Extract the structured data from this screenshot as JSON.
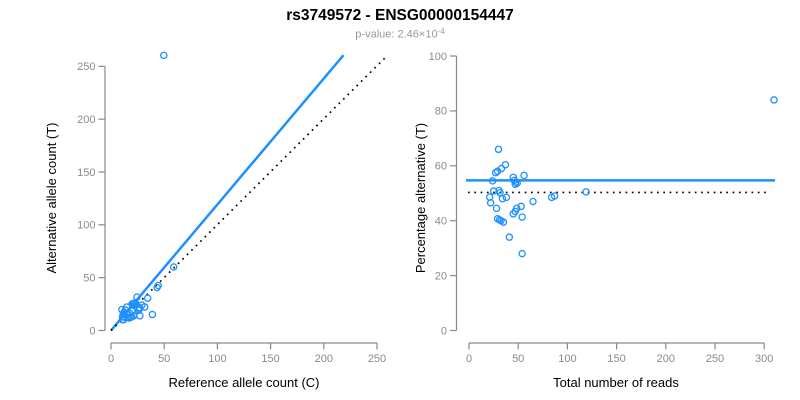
{
  "header": {
    "title": "rs3749572 - ENSG00000154447",
    "pvalue_label": "p-value: 2.46×10",
    "pvalue_exponent": "-4"
  },
  "colors": {
    "accent_blue": "#1E90FF",
    "dotted_black": "#000000",
    "axis_gray": "#8A8A8A",
    "tick_label_gray": "#8A8A8A",
    "label_black": "#000000",
    "subtitle_gray": "#999999",
    "background": "#FFFFFF"
  },
  "chart_data": [
    {
      "id": "allele-counts",
      "type": "scatter",
      "title": "",
      "xlabel": "Reference allele count (C)",
      "ylabel": "Alternative allele count (T)",
      "xlim": [
        0,
        250
      ],
      "ylim": [
        0,
        250
      ],
      "xticks": [
        0,
        50,
        100,
        150,
        200,
        250
      ],
      "yticks": [
        0,
        50,
        100,
        150,
        200,
        250
      ],
      "grid": false,
      "legend": false,
      "marker": "open-circle",
      "points": [
        [
          49.6,
          260.4
        ],
        [
          10.2,
          19.8
        ],
        [
          14.8,
          22.2
        ],
        [
          13.5,
          19.5
        ],
        [
          12.2,
          16.8
        ],
        [
          11.5,
          15.5
        ],
        [
          10.9,
          13.1
        ],
        [
          19.8,
          25.2
        ],
        [
          24.4,
          31.6
        ],
        [
          20.8,
          25.2
        ],
        [
          21.9,
          25.7
        ],
        [
          22.7,
          26.3
        ],
        [
          21.9,
          25.1
        ],
        [
          58.9,
          60.1
        ],
        [
          12.3,
          12.7
        ],
        [
          14.9,
          15.6
        ],
        [
          15.7,
          15.8
        ],
        [
          10.8,
          10.2
        ],
        [
          17.7,
          16.3
        ],
        [
          19.6,
          18.4
        ],
        [
          34.5,
          30.6
        ],
        [
          11.8,
          10.2
        ],
        [
          43.3,
          40.7
        ],
        [
          44.4,
          42.6
        ],
        [
          15.5,
          12.5
        ],
        [
          26.9,
          21.6
        ],
        [
          29.0,
          24.0
        ],
        [
          26.6,
          20.4
        ],
        [
          25.9,
          19.1
        ],
        [
          31.7,
          22.3
        ],
        [
          17.2,
          11.8
        ],
        [
          18.5,
          12.5
        ],
        [
          19.5,
          13.0
        ],
        [
          21.2,
          13.8
        ],
        [
          27.1,
          13.9
        ],
        [
          38.9,
          15.1
        ]
      ],
      "lines": [
        {
          "name": "regression-line",
          "style": "solid",
          "color": "#1E90FF",
          "slope_approx": 1.19,
          "points": [
            [
              0,
              0
            ],
            [
              218.5,
              260.5
            ]
          ]
        },
        {
          "name": "identity-line",
          "style": "dotted",
          "color": "#000000",
          "points": [
            [
              0,
              0
            ],
            [
              259,
              259.5
            ]
          ]
        }
      ]
    },
    {
      "id": "percentage-vs-coverage",
      "type": "scatter",
      "title": "",
      "xlabel": "Total number of reads",
      "ylabel": "Percentage alternative (T)",
      "xlim": [
        0,
        300
      ],
      "ylim": [
        0,
        100
      ],
      "xticks": [
        0,
        50,
        100,
        150,
        200,
        250,
        300
      ],
      "yticks": [
        0,
        20,
        40,
        60,
        80,
        100
      ],
      "grid": false,
      "legend": false,
      "marker": "open-circle",
      "points": [
        [
          310,
          84
        ],
        [
          30,
          66
        ],
        [
          37,
          60.4
        ],
        [
          33,
          59
        ],
        [
          29,
          58
        ],
        [
          27,
          57.5
        ],
        [
          24,
          54.5
        ],
        [
          45,
          55.8
        ],
        [
          56,
          56.5
        ],
        [
          46,
          54.7
        ],
        [
          47.5,
          54.1
        ],
        [
          49,
          53.7
        ],
        [
          47,
          53.3
        ],
        [
          119,
          50.5
        ],
        [
          25,
          50.8
        ],
        [
          30.5,
          51
        ],
        [
          31.5,
          50.2
        ],
        [
          21,
          48.6
        ],
        [
          34,
          48
        ],
        [
          38,
          48.5
        ],
        [
          65,
          47
        ],
        [
          22,
          46.5
        ],
        [
          84,
          48.5
        ],
        [
          87,
          49
        ],
        [
          28,
          44.5
        ],
        [
          48.5,
          44.5
        ],
        [
          53,
          45.2
        ],
        [
          47,
          43.4
        ],
        [
          45,
          42.5
        ],
        [
          54,
          41.3
        ],
        [
          29,
          40.7
        ],
        [
          31,
          40.3
        ],
        [
          32.5,
          40
        ],
        [
          35,
          39.5
        ],
        [
          41,
          34
        ],
        [
          54,
          28
        ]
      ],
      "lines": [
        {
          "name": "mean-percentage-line",
          "style": "solid",
          "color": "#1E90FF",
          "value": 54.7,
          "points": [
            [
              -3,
              54.7
            ],
            [
              311,
              54.7
            ]
          ]
        },
        {
          "name": "fifty-percent-line",
          "style": "dotted",
          "color": "#000000",
          "value": 50.3,
          "points": [
            [
              -1,
              50.3
            ],
            [
              306,
              50.3
            ]
          ]
        }
      ]
    }
  ]
}
